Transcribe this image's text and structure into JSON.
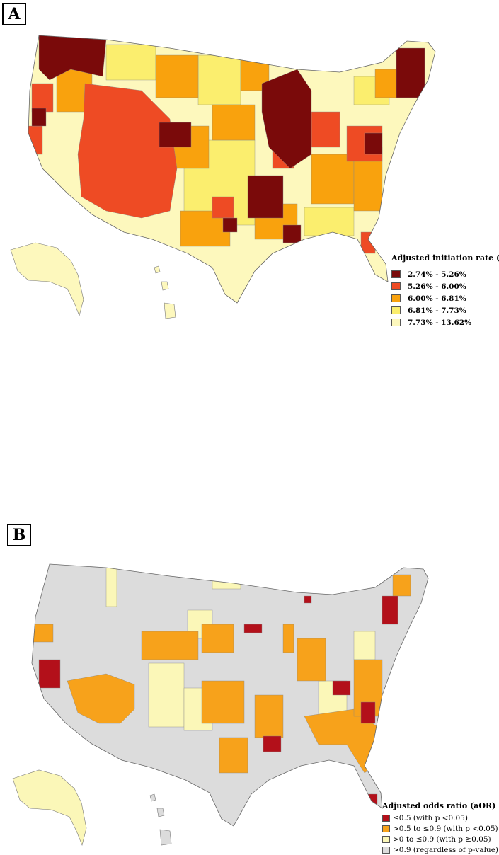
{
  "panels": [
    {
      "label": "A",
      "legend": {
        "title": "Adjusted initiation rate (%)",
        "items": [
          {
            "label": "2.74% - 5.26%",
            "color": "#7a0a0a"
          },
          {
            "label": "5.26% - 6.00%",
            "color": "#ee4b24"
          },
          {
            "label": "6.00% - 6.81%",
            "color": "#f9a20d"
          },
          {
            "label": "6.81% - 7.73%",
            "color": "#fbee6e"
          },
          {
            "label": "7.73% - 13.62%",
            "color": "#fdf8bd"
          }
        ]
      }
    },
    {
      "label": "B",
      "legend": {
        "title": "Adjusted odds ratio (aOR)",
        "items": [
          {
            "label": "≤0.5 (with p <0.05)",
            "color": "#b3101a"
          },
          {
            "label": ">0.5 to ≤0.9 (with p <0.05)",
            "color": "#f7a21b"
          },
          {
            "label": ">0 to ≤0.9 (with p ≥0.05)",
            "color": "#fbf7b8"
          },
          {
            "label": ">0.9 (regardless of p-value)",
            "color": "#dcdcdc"
          }
        ]
      }
    }
  ]
}
